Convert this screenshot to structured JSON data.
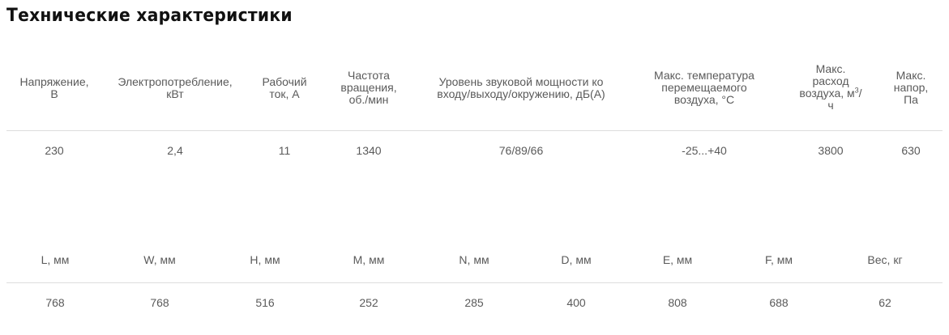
{
  "title": "Технические характеристики",
  "specs": {
    "headers": [
      [
        "Напряжение,",
        "В"
      ],
      [
        "Электропотребление,",
        "кВт"
      ],
      [
        "Рабочий",
        "ток, А"
      ],
      [
        "Частота",
        "вращения,",
        "об./мин"
      ],
      [
        "Уровень звуковой мощности ко",
        "входу/выходу/окружению, дБ(А)"
      ],
      [
        "Макс. температура",
        "перемещаемого",
        "воздуха, °C"
      ],
      [
        "Макс.",
        "расход",
        "воздуха, м",
        "ч"
      ],
      [
        "Макс.",
        "напор,",
        "Па"
      ]
    ],
    "flow_sup": "3",
    "flow_slash": "/",
    "values": [
      "230",
      "2,4",
      "11",
      "1340",
      "76/89/66",
      "-25...+40",
      "3800",
      "630"
    ]
  },
  "dimensions": {
    "headers": [
      "L, мм",
      "W, мм",
      "H, мм",
      "M, мм",
      "N, мм",
      "D, мм",
      "E, мм",
      "F, мм",
      "Вес, кг"
    ],
    "values": [
      "768",
      "768",
      "516",
      "252",
      "285",
      "400",
      "808",
      "688",
      "62"
    ]
  }
}
